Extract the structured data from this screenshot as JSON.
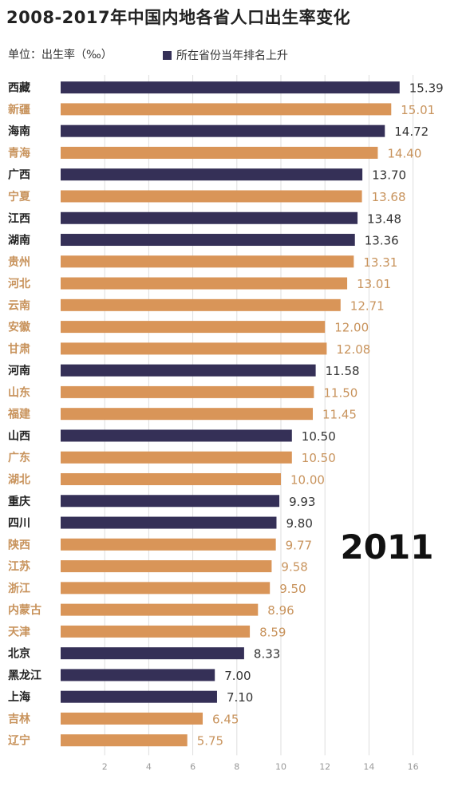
{
  "title": "2008-2017年中国内地各省人口出生率变化",
  "unit_label": "单位：出生率（‰）",
  "legend_label": "所在省份当年排名上升",
  "year_label": "2011",
  "colors": {
    "rising": "#353057",
    "other": "#d99558",
    "label_other": "#c8935c",
    "grid": "#dedede",
    "axis_text": "#999999",
    "text": "#333333"
  },
  "chart_data": {
    "type": "bar",
    "orientation": "horizontal",
    "title": "2008-2017年中国内地各省人口出生率变化",
    "unit": "出生率（‰）",
    "xlim": [
      0,
      16
    ],
    "xticks": [
      2,
      4,
      6,
      8,
      10,
      12,
      14,
      16
    ],
    "grid": true,
    "categories": [
      "西藏",
      "新疆",
      "海南",
      "青海",
      "广西",
      "宁夏",
      "江西",
      "湖南",
      "贵州",
      "河北",
      "云南",
      "安徽",
      "甘肃",
      "河南",
      "山东",
      "福建",
      "山西",
      "广东",
      "湖北",
      "重庆",
      "四川",
      "陕西",
      "江苏",
      "浙江",
      "内蒙古",
      "天津",
      "北京",
      "黑龙江",
      "上海",
      "吉林",
      "辽宁"
    ],
    "values": [
      15.39,
      15.01,
      14.72,
      14.4,
      13.7,
      13.68,
      13.48,
      13.36,
      13.31,
      13.01,
      12.71,
      12.0,
      12.08,
      11.58,
      11.5,
      11.45,
      10.5,
      10.5,
      10.0,
      9.93,
      9.8,
      9.77,
      9.58,
      9.5,
      8.96,
      8.59,
      8.33,
      7.0,
      7.1,
      6.45,
      5.75
    ],
    "value_labels": [
      "15.39",
      "15.01",
      "14.72",
      "14.40",
      "13.70",
      "13.68",
      "13.48",
      "13.36",
      "13.31",
      "13.01",
      "12.71",
      "12.00",
      "12.08",
      "11.58",
      "11.50",
      "11.45",
      "10.50",
      "10.50",
      "10.00",
      "9.93",
      "9.80",
      "9.77",
      "9.58",
      "9.50",
      "8.96",
      "8.59",
      "8.33",
      "7.00",
      "7.10",
      "6.45",
      "5.75"
    ],
    "rising": [
      true,
      false,
      true,
      false,
      true,
      false,
      true,
      true,
      false,
      false,
      false,
      false,
      false,
      true,
      false,
      false,
      true,
      false,
      false,
      true,
      true,
      false,
      false,
      false,
      false,
      false,
      true,
      true,
      true,
      false,
      false
    ]
  }
}
